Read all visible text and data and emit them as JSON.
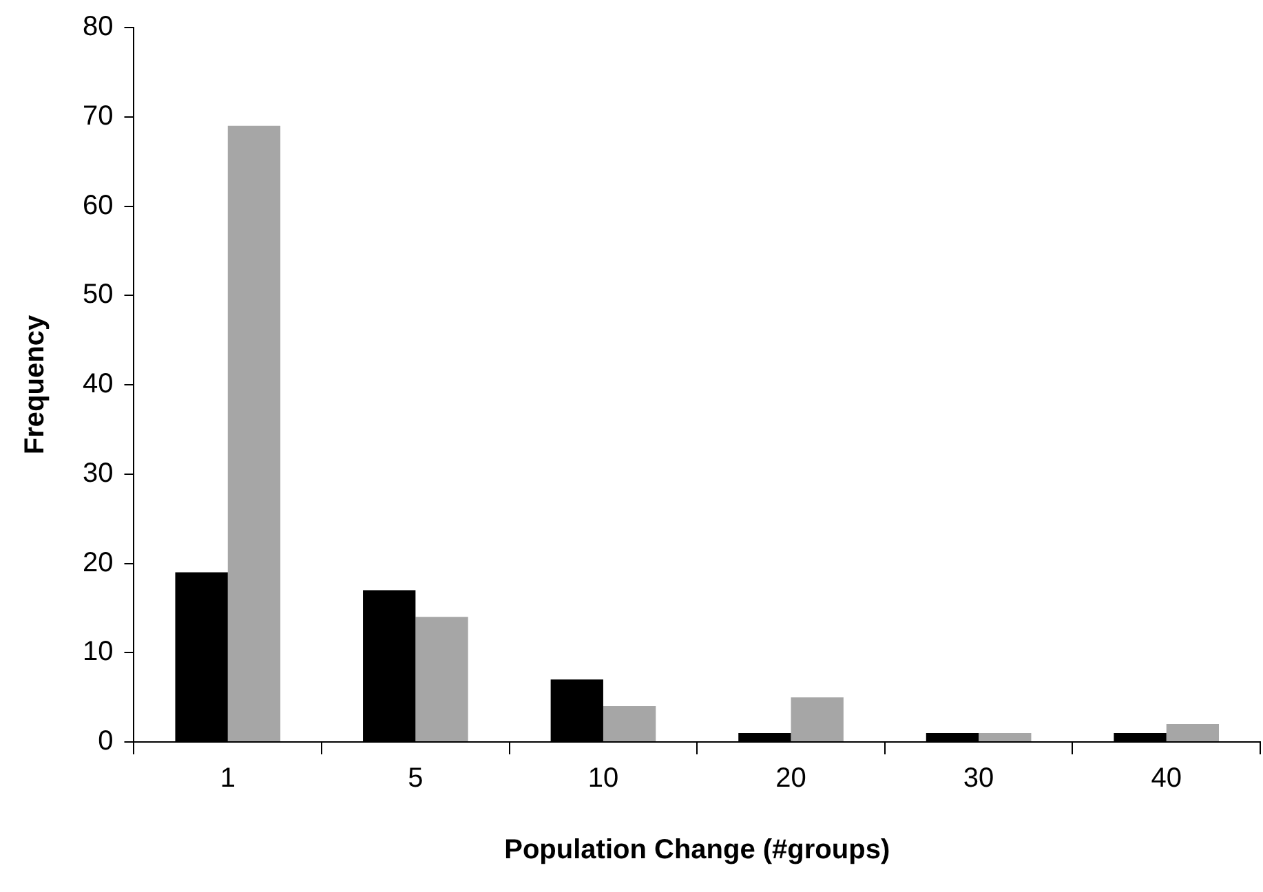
{
  "chart_data": {
    "type": "bar",
    "xlabel": "Population Change (#groups)",
    "ylabel": "Frequency",
    "categories": [
      "1",
      "5",
      "10",
      "20",
      "30",
      "40"
    ],
    "series": [
      {
        "color": "#000000",
        "values": [
          19,
          17,
          7,
          1,
          1,
          1
        ]
      },
      {
        "color": "#a6a6a6",
        "values": [
          69,
          14,
          4,
          5,
          1,
          2
        ]
      }
    ],
    "ylim": [
      0,
      80
    ],
    "yticks": [
      0,
      10,
      20,
      30,
      40,
      50,
      60,
      70,
      80
    ]
  }
}
